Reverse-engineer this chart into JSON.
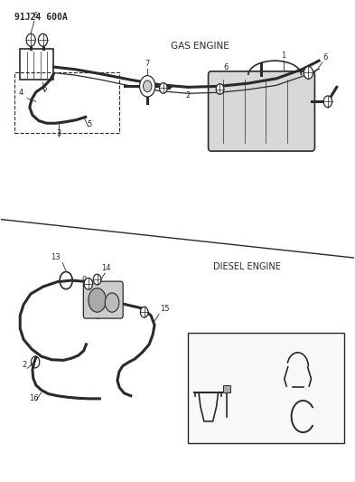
{
  "title": "91J24 600A",
  "bg_color": "#ffffff",
  "line_color": "#2a2a2a",
  "gas_engine_label": "GAS ENGINE",
  "diesel_engine_label": "DIESEL ENGINE"
}
